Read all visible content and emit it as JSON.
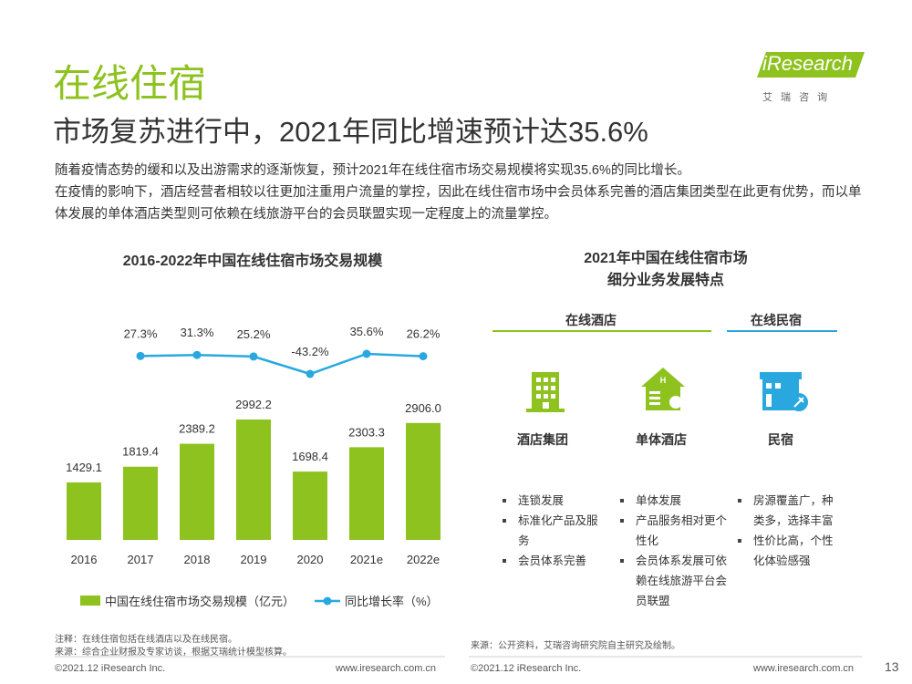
{
  "header": {
    "title": "在线住宿",
    "subtitle": "市场复苏进行中，2021年同比增速预计达35.6%",
    "logo": "iResearch",
    "logo_cn": "艾 瑞 咨 询"
  },
  "intro": [
    "随着疫情态势的缓和以及出游需求的逐渐恢复，预计2021年在线住宿市场交易规模将实现35.6%的同比增长。",
    "在疫情的影响下，酒店经营者相较以往更加注重用户流量的掌控，因此在线住宿市场中会员体系完善的酒店集团类型在此更有优势，而以单体发展的单体酒店类型则可依赖在线旅游平台的会员联盟实现一定程度上的流量掌控。"
  ],
  "chart_data": {
    "type": "bar-line",
    "title": "2016-2022年中国在线住宿市场交易规模",
    "categories": [
      "2016",
      "2017",
      "2018",
      "2019",
      "2020",
      "2021e",
      "2022e"
    ],
    "series": [
      {
        "name": "中国在线住宿市场交易规模（亿元）",
        "type": "bar",
        "color": "#8dc21f",
        "values": [
          1429.1,
          1819.4,
          2389.2,
          2992.2,
          1698.4,
          2303.3,
          2906.0
        ],
        "value_labels": [
          "1429.1",
          "1819.4",
          "2389.2",
          "2992.2",
          "1698.4",
          "2303.3",
          "2906.0"
        ]
      },
      {
        "name": "同比增长率（%）",
        "type": "line",
        "axis": "y2",
        "color": "#29a8e0",
        "values": [
          null,
          27.3,
          31.3,
          25.2,
          -43.2,
          35.6,
          26.2
        ],
        "value_labels": [
          null,
          "27.3%",
          "31.3%",
          "25.2%",
          "-43.2%",
          "35.6%",
          "26.2%"
        ]
      }
    ],
    "legend": "bottom",
    "grid": false
  },
  "segments": {
    "title": [
      "2021年中国在线住宿市场",
      "细分业务发展特点"
    ],
    "groups": [
      "在线酒店",
      "在线民宿"
    ],
    "columns": [
      {
        "name": "酒店集团",
        "items": [
          "连锁发展",
          "标准化产品及服务",
          "会员体系完善"
        ]
      },
      {
        "name": "单体酒店",
        "items": [
          "单体发展",
          "产品服务相对更个性化",
          "会员体系发展可依赖在线旅游平台会员联盟"
        ]
      },
      {
        "name": "民宿",
        "items": [
          "房源覆盖广，种类多，选择丰富",
          "性价比高，个性化体验感强"
        ]
      }
    ]
  },
  "footer": {
    "note": "注释：在线住宿包括在线酒店以及在线民宿。",
    "source_left": "来源：综合企业财报及专家访谈，根据艾瑞统计模型核算。",
    "source_right": "来源：公开资料，艾瑞咨询研究院自主研究及绘制。",
    "copyright_left": "©2021.12 iResearch Inc.",
    "url_left": "www.iresearch.com.cn",
    "copyright_right": "©2021.12 iResearch Inc.",
    "url_right": "www.iresearch.com.cn",
    "page": "13"
  }
}
